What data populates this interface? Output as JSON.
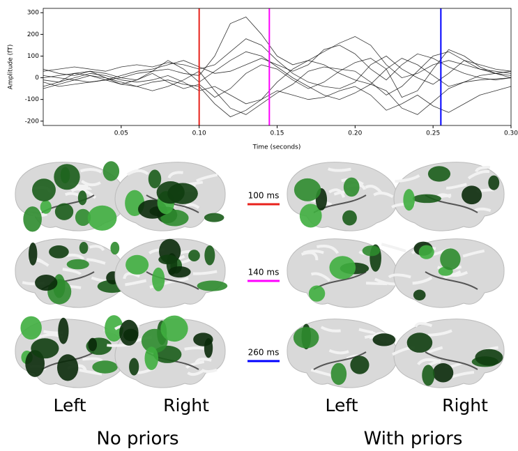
{
  "chart_data": {
    "type": "line",
    "xlabel": "Time (seconds)",
    "ylabel": "Amplitude (fT)",
    "x": [
      0,
      0.01,
      0.02,
      0.03,
      0.04,
      0.05,
      0.06,
      0.07,
      0.08,
      0.09,
      0.1,
      0.11,
      0.12,
      0.13,
      0.14,
      0.15,
      0.16,
      0.17,
      0.18,
      0.19,
      0.2,
      0.21,
      0.22,
      0.23,
      0.24,
      0.25,
      0.26,
      0.27,
      0.28,
      0.29,
      0.3
    ],
    "series": [
      {
        "color": "#000000",
        "values": [
          0,
          10,
          20,
          10,
          -10,
          0,
          20,
          30,
          40,
          20,
          10,
          100,
          250,
          280,
          200,
          100,
          60,
          80,
          120,
          160,
          190,
          150,
          60,
          0,
          20,
          60,
          80,
          60,
          40,
          30,
          20
        ]
      },
      {
        "color": "#000000",
        "values": [
          -20,
          -40,
          -30,
          -20,
          -10,
          -30,
          -40,
          -20,
          -10,
          -30,
          -40,
          -120,
          -180,
          -150,
          -100,
          -60,
          -80,
          -100,
          -90,
          -60,
          -40,
          -80,
          -150,
          -120,
          -80,
          -130,
          -160,
          -120,
          -80,
          -60,
          -40
        ]
      },
      {
        "color": "#000000",
        "values": [
          30,
          40,
          50,
          40,
          30,
          50,
          60,
          50,
          70,
          60,
          40,
          60,
          120,
          180,
          150,
          80,
          20,
          -20,
          -40,
          -50,
          -20,
          60,
          100,
          40,
          0,
          -30,
          20,
          80,
          60,
          40,
          30
        ]
      },
      {
        "color": "#000000",
        "values": [
          -50,
          -30,
          -10,
          10,
          0,
          -20,
          -40,
          -60,
          -40,
          -10,
          30,
          -60,
          -140,
          -170,
          -120,
          -70,
          -30,
          30,
          50,
          40,
          30,
          -20,
          -80,
          -40,
          30,
          100,
          120,
          80,
          40,
          20,
          10
        ]
      },
      {
        "color": "#000000",
        "values": [
          10,
          0,
          -10,
          -20,
          -10,
          10,
          30,
          40,
          60,
          80,
          50,
          20,
          30,
          60,
          90,
          60,
          30,
          60,
          130,
          150,
          110,
          40,
          -10,
          60,
          110,
          90,
          50,
          20,
          0,
          -10,
          0
        ]
      },
      {
        "color": "#000000",
        "values": [
          -10,
          -20,
          0,
          20,
          10,
          -10,
          -20,
          -10,
          10,
          -20,
          -60,
          -40,
          -80,
          -120,
          -100,
          -20,
          40,
          80,
          60,
          20,
          -10,
          -30,
          -60,
          -140,
          -170,
          -110,
          -50,
          -20,
          -10,
          -5,
          0
        ]
      },
      {
        "color": "#000000",
        "values": [
          40,
          20,
          10,
          30,
          20,
          0,
          -10,
          30,
          80,
          40,
          -20,
          30,
          80,
          120,
          100,
          50,
          0,
          -40,
          -80,
          -100,
          -70,
          -30,
          40,
          90,
          60,
          10,
          -40,
          -20,
          10,
          20,
          30
        ]
      },
      {
        "color": "#000000",
        "values": [
          -40,
          -20,
          20,
          30,
          0,
          -30,
          -10,
          20,
          -20,
          -50,
          -30,
          -90,
          -50,
          20,
          60,
          40,
          -10,
          -50,
          -20,
          30,
          70,
          90,
          40,
          -90,
          -60,
          40,
          130,
          100,
          50,
          20,
          0
        ]
      }
    ],
    "vlines": [
      {
        "x": 0.1,
        "color": "#e8211b"
      },
      {
        "x": 0.145,
        "color": "#ff00ff"
      },
      {
        "x": 0.255,
        "color": "#0000ff"
      }
    ],
    "xlim": [
      0,
      0.3
    ],
    "ylim": [
      -220,
      320
    ],
    "xticks": [
      0.05,
      {
        "value": 0.1,
        "label": "0.10"
      },
      0.15,
      {
        "value": 0.2,
        "label": "0.20"
      },
      0.25,
      {
        "value": 0.3,
        "label": "0.30"
      }
    ],
    "yticks": [
      -200,
      -100,
      0,
      100,
      200,
      300
    ]
  },
  "panels": {
    "times": [
      "100 ms",
      "140 ms",
      "260 ms"
    ],
    "groups": [
      {
        "title": "No priors",
        "hemispheres": [
          "Left",
          "Right"
        ]
      },
      {
        "title": "With priors",
        "hemispheres": [
          "Left",
          "Right"
        ]
      }
    ]
  }
}
